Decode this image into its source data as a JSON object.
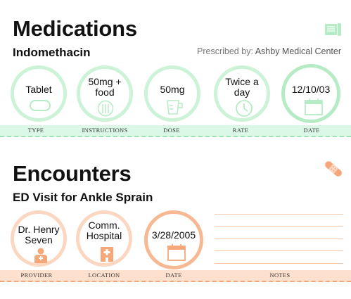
{
  "medications": {
    "title": "Medications",
    "drug": "Indomethacin",
    "prescribed_label": "Prescribed by:",
    "prescribed_by": "Ashby Medical Center",
    "items": [
      {
        "value": "Tablet",
        "label": "TYPE",
        "icon": "pill-icon"
      },
      {
        "value": "50mg + food",
        "label": "INSTRUCTIONS",
        "icon": "plate-utensils-icon"
      },
      {
        "value": "50mg",
        "label": "DOSE",
        "icon": "measuring-cup-icon"
      },
      {
        "value": "Twice a day",
        "label": "RATE",
        "icon": "clock-icon"
      },
      {
        "value": "12/10/03",
        "label": "DATE",
        "icon": "calendar-icon"
      }
    ],
    "colors": {
      "ring": "#ccf3d8",
      "icon": "#b5ecc6",
      "band": "#dbf7e5"
    }
  },
  "encounters": {
    "title": "Encounters",
    "visit": "ED Visit for Ankle Sprain",
    "items": [
      {
        "value": "Dr. Henry Seven",
        "label": "PROVIDER",
        "icon": "doctor-icon"
      },
      {
        "value": "Comm. Hospital",
        "label": "LOCATION",
        "icon": "hospital-icon"
      },
      {
        "value": "3/28/2005",
        "label": "DATE",
        "icon": "calendar-icon"
      }
    ],
    "notes_label": "NOTES",
    "colors": {
      "ring": "#fbd7c1",
      "icon": "#f6a77a",
      "band": "#fde0cd"
    }
  }
}
